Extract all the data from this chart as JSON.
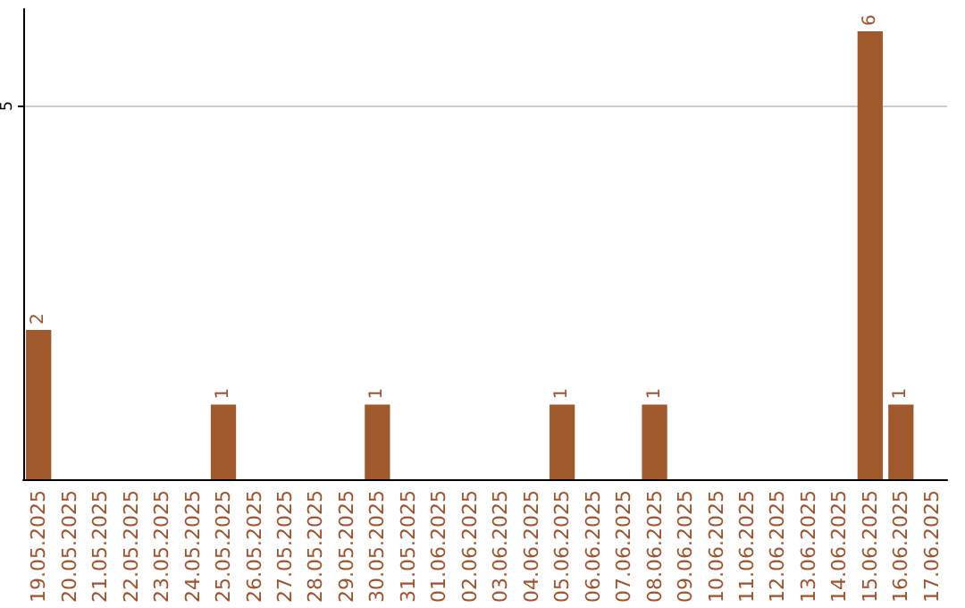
{
  "chart_data": {
    "type": "bar",
    "categories": [
      "19.05.2025",
      "20.05.2025",
      "21.05.2025",
      "22.05.2025",
      "23.05.2025",
      "24.05.2025",
      "25.05.2025",
      "26.05.2025",
      "27.05.2025",
      "28.05.2025",
      "29.05.2025",
      "30.05.2025",
      "31.05.2025",
      "01.06.2025",
      "02.06.2025",
      "03.06.2025",
      "04.06.2025",
      "05.06.2025",
      "06.06.2025",
      "07.06.2025",
      "08.06.2025",
      "09.06.2025",
      "10.06.2025",
      "11.06.2025",
      "12.06.2025",
      "13.06.2025",
      "14.06.2025",
      "15.06.2025",
      "16.06.2025",
      "17.06.2025"
    ],
    "values": [
      2,
      0,
      0,
      0,
      0,
      0,
      1,
      0,
      0,
      0,
      0,
      1,
      0,
      0,
      0,
      0,
      0,
      1,
      0,
      0,
      1,
      0,
      0,
      0,
      0,
      0,
      0,
      6,
      1,
      0
    ],
    "color": "#a0592a",
    "value_labels": [
      "2",
      null,
      null,
      null,
      null,
      null,
      "1",
      null,
      null,
      null,
      null,
      "1",
      null,
      null,
      null,
      null,
      null,
      "1",
      null,
      null,
      "1",
      null,
      null,
      null,
      null,
      null,
      null,
      "6",
      "1",
      null
    ],
    "ylim": [
      0,
      6.3
    ],
    "yticks": [
      5
    ],
    "grid": "y"
  }
}
